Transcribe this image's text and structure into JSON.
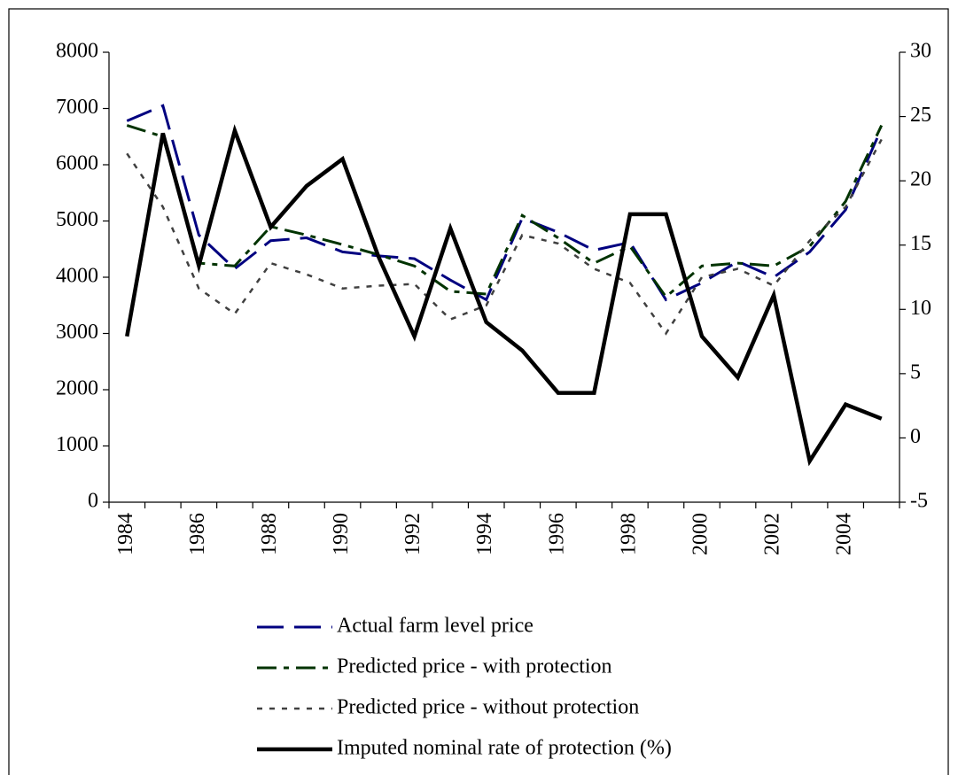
{
  "chart_data": {
    "type": "line",
    "categories": [
      "1984",
      null,
      "1986",
      null,
      "1988",
      null,
      "1990",
      null,
      "1992",
      null,
      "1994",
      null,
      "1996",
      null,
      "1998",
      null,
      "2000",
      null,
      "2002",
      null,
      "2004",
      null
    ],
    "series": [
      {
        "name": "Actual farm level price",
        "color": "#000080",
        "dash": "long",
        "values": [
          6780,
          7050,
          4750,
          4150,
          4650,
          4700,
          4450,
          4380,
          4330,
          3950,
          3600,
          5050,
          4800,
          4480,
          4620,
          3600,
          3900,
          4280,
          4000,
          4450,
          5200,
          6650
        ]
      },
      {
        "name": "Predicted price - with protection",
        "color": "#003300",
        "dash": "dashdot",
        "values": [
          6700,
          6500,
          4250,
          4200,
          4900,
          4750,
          4580,
          4400,
          4200,
          3750,
          3700,
          5100,
          4700,
          4250,
          4550,
          3650,
          4200,
          4250,
          4200,
          4550,
          5350,
          6700
        ]
      },
      {
        "name": "Predicted price - without protection",
        "color": "#404040",
        "dash": "dotted",
        "values": [
          6200,
          5250,
          3800,
          3350,
          4250,
          4050,
          3800,
          3850,
          3880,
          3250,
          3500,
          4750,
          4600,
          4150,
          3900,
          3000,
          4000,
          4150,
          3850,
          4650,
          5250,
          6450
        ]
      },
      {
        "name": "Imputed nominal rate of protection (%)",
        "color": "#000000",
        "dash": "solid",
        "axis": "y2",
        "values": [
          7.9,
          23.7,
          13.4,
          23.9,
          16.4,
          19.6,
          21.7,
          14.1,
          7.9,
          16.3,
          9,
          6.8,
          3.5,
          3.5,
          17.4,
          17.4,
          7.9,
          4.7,
          11.1,
          -1.8,
          2.6,
          1.5
        ]
      }
    ],
    "ylim": [
      0,
      8000
    ],
    "yticks": [
      0,
      1000,
      2000,
      3000,
      4000,
      5000,
      6000,
      7000,
      8000
    ],
    "y2lim": [
      -5,
      30
    ],
    "y2ticks": [
      -5,
      0,
      5,
      10,
      15,
      20,
      25,
      30
    ],
    "legend": "bottom"
  }
}
